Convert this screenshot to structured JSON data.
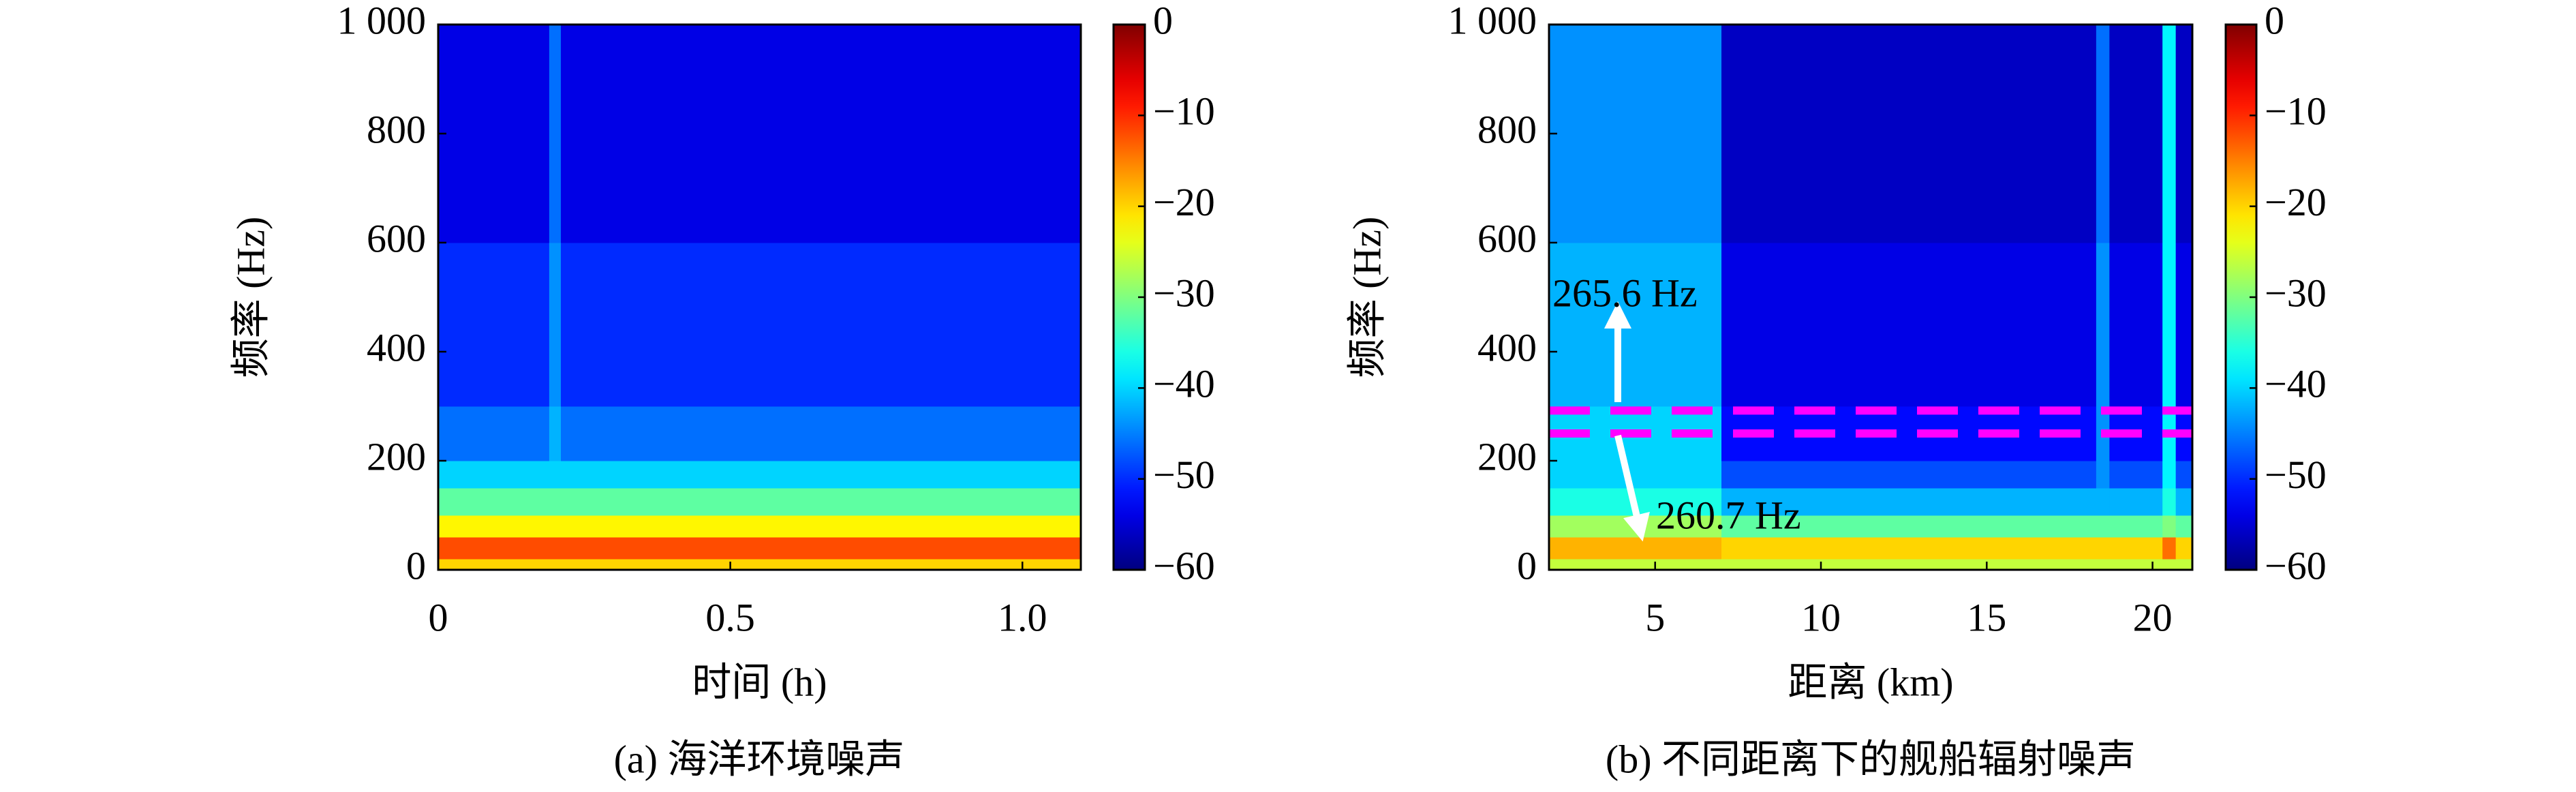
{
  "chart_data": [
    {
      "type": "heatmap",
      "colormap": "jet",
      "caption": "(a) 海洋环境噪声",
      "x_label": "时间 (h)",
      "y_label": "频率 (Hz)",
      "xlim": [
        0,
        1.1
      ],
      "xticks": [
        0,
        0.5,
        {
          "value": 1,
          "label": "1.0"
        }
      ],
      "ylim": [
        0,
        1000
      ],
      "yticks": [
        0,
        200,
        400,
        600,
        800,
        {
          "value": 1000,
          "label": "1 000"
        }
      ],
      "clim": [
        -60,
        0
      ],
      "cticks": [
        {
          "value": 0,
          "label": "0"
        },
        {
          "value": -10,
          "label": "−10"
        },
        {
          "value": -20,
          "label": "−20"
        },
        {
          "value": -30,
          "label": "−30"
        },
        {
          "value": -40,
          "label": "−40"
        },
        {
          "value": -50,
          "label": "−50"
        },
        {
          "value": -60,
          "label": "−60"
        }
      ],
      "x_bins": [
        0,
        0.19,
        0.21,
        1.1
      ],
      "y_bins": [
        0,
        20,
        60,
        100,
        150,
        200,
        300,
        600,
        1000
      ],
      "values": [
        [
          -20,
          -20,
          -20
        ],
        [
          -12,
          -12,
          -12
        ],
        [
          -22,
          -22,
          -22
        ],
        [
          -32,
          -32,
          -32
        ],
        [
          -40,
          -40,
          -40
        ],
        [
          -46,
          -42,
          -46
        ],
        [
          -50,
          -44,
          -50
        ],
        [
          -54,
          -46,
          -54
        ]
      ]
    },
    {
      "type": "heatmap",
      "colormap": "jet",
      "caption": "(b) 不同距离下的舰船辐射噪声",
      "x_label": "距离 (km)",
      "y_label": "频率 (Hz)",
      "xlim": [
        1.8,
        21.2
      ],
      "xticks": [
        5,
        10,
        15,
        20
      ],
      "ylim": [
        0,
        1000
      ],
      "yticks": [
        0,
        200,
        400,
        600,
        800,
        {
          "value": 1000,
          "label": "1 000"
        }
      ],
      "clim": [
        -60,
        0
      ],
      "cticks": [
        {
          "value": 0,
          "label": "0"
        },
        {
          "value": -10,
          "label": "−10"
        },
        {
          "value": -20,
          "label": "−20"
        },
        {
          "value": -30,
          "label": "−30"
        },
        {
          "value": -40,
          "label": "−40"
        },
        {
          "value": -50,
          "label": "−50"
        },
        {
          "value": -60,
          "label": "−60"
        }
      ],
      "x_bins": [
        1.8,
        7,
        18.3,
        18.7,
        20.3,
        20.7,
        21.2
      ],
      "y_bins": [
        0,
        20,
        60,
        100,
        150,
        200,
        300,
        600,
        1000
      ],
      "values": [
        [
          -26,
          -26,
          -26,
          -26,
          -26,
          -26
        ],
        [
          -18,
          -20,
          -20,
          -20,
          -14,
          -20
        ],
        [
          -28,
          -32,
          -32,
          -32,
          -30,
          -32
        ],
        [
          -36,
          -42,
          -42,
          -42,
          -36,
          -42
        ],
        [
          -40,
          -48,
          -44,
          -48,
          -38,
          -48
        ],
        [
          -40,
          -52,
          -44,
          -52,
          -38,
          -52
        ],
        [
          -42,
          -54,
          -44,
          -54,
          -38,
          -54
        ],
        [
          -44,
          -56,
          -46,
          -56,
          -38,
          -56
        ]
      ],
      "hlines": [
        {
          "value": 292,
          "color": "#ff00ff"
        },
        {
          "value": 250,
          "color": "#ff00ff"
        }
      ],
      "annotations": [
        {
          "text": "265.6 Hz"
        },
        {
          "text": "260.7 Hz"
        }
      ]
    }
  ]
}
